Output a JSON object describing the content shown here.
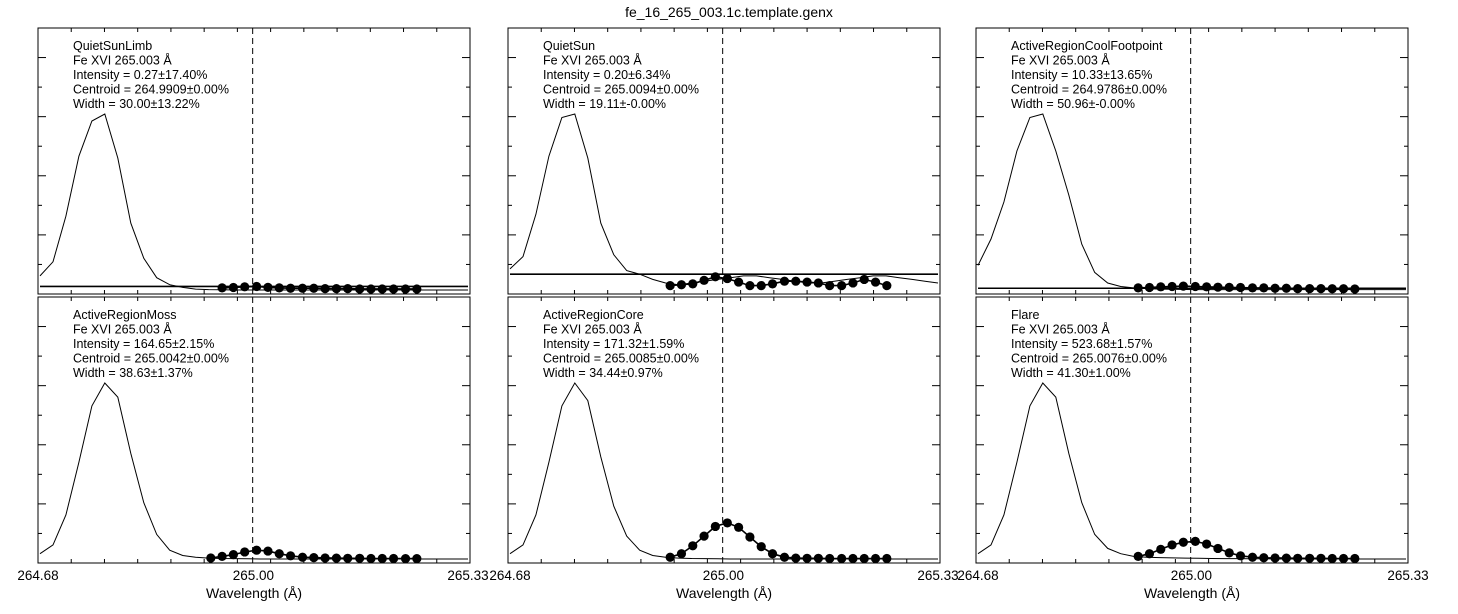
{
  "title": "fe_16_265_003.1c.template.genx",
  "xlabel": "Wavelength (Å)",
  "x_ticks": [
    "264.68",
    "265.00",
    "265.33"
  ],
  "colors": {
    "line": "#000000",
    "background": "#ffffff"
  },
  "chart_data": [
    {
      "type": "line",
      "name": "QuietSunLimb",
      "lines": [
        "QuietSunLimb",
        "Fe XVI 265.003 Å",
        "Intensity = 0.27±17.40%",
        "Centroid = 264.9909±0.00%",
        "Width = 30.00±13.22%"
      ],
      "xlim": [
        264.68,
        265.33
      ],
      "ylim": [
        0,
        1
      ],
      "vline": 265.003,
      "template_y": [
        0.08,
        0.16,
        0.42,
        0.76,
        0.96,
        1.0,
        0.75,
        0.38,
        0.18,
        0.07,
        0.03,
        0.015,
        0.005,
        0.002,
        0.001,
        0,
        0,
        0,
        0,
        0,
        0,
        0,
        0,
        0,
        0,
        0,
        0,
        0,
        0,
        0,
        0,
        0,
        0,
        0
      ],
      "baseline_y": 0.02,
      "points_x": [
        264.957,
        264.974,
        264.991,
        265.009,
        265.026,
        265.043,
        265.06,
        265.078,
        265.095,
        265.112,
        265.129,
        265.146,
        265.164,
        265.181,
        265.198,
        265.215,
        265.233,
        265.25
      ],
      "points_y": [
        0.012,
        0.014,
        0.018,
        0.02,
        0.015,
        0.012,
        0.01,
        0.01,
        0.01,
        0.008,
        0.008,
        0.008,
        0.006,
        0.006,
        0.006,
        0.006,
        0.006,
        0.006
      ]
    },
    {
      "type": "line",
      "name": "QuietSun",
      "lines": [
        "QuietSun",
        "Fe XVI 265.003 Å",
        "Intensity = 0.20±6.34%",
        "Centroid = 265.0094±0.00%",
        "Width = 19.11±-0.00%"
      ],
      "xlim": [
        264.68,
        265.33
      ],
      "ylim": [
        0,
        1
      ],
      "vline": 265.003,
      "template_y": [
        0.12,
        0.19,
        0.43,
        0.76,
        0.98,
        1.0,
        0.75,
        0.38,
        0.2,
        0.11,
        0.09,
        0.06,
        0.04,
        0.03,
        0.04,
        0.05,
        0.06,
        0.07,
        0.08,
        0.08,
        0.07,
        0.06,
        0.05,
        0.04,
        0.04,
        0.05,
        0.06,
        0.07,
        0.08,
        0.08,
        0.07,
        0.06,
        0.05,
        0.04
      ],
      "baseline_y": 0.09,
      "points_x": [
        264.924,
        264.941,
        264.958,
        264.975,
        264.992,
        265.01,
        265.027,
        265.044,
        265.061,
        265.078,
        265.096,
        265.113,
        265.13,
        265.147,
        265.164,
        265.182,
        265.199,
        265.216,
        265.233,
        265.25
      ],
      "points_y": [
        0.025,
        0.03,
        0.035,
        0.055,
        0.075,
        0.065,
        0.045,
        0.025,
        0.025,
        0.035,
        0.05,
        0.05,
        0.045,
        0.04,
        0.025,
        0.025,
        0.04,
        0.06,
        0.045,
        0.025
      ]
    },
    {
      "type": "line",
      "name": "ActiveRegionCoolFootpoint",
      "lines": [
        "ActiveRegionCoolFootpoint",
        "Fe XVI 265.003 Å",
        "Intensity = 10.33±13.65%",
        "Centroid = 264.9786±0.00%",
        "Width = 50.96±-0.00%"
      ],
      "xlim": [
        264.68,
        265.33
      ],
      "ylim": [
        0,
        1
      ],
      "vline": 265.003,
      "template_y": [
        0.14,
        0.29,
        0.5,
        0.79,
        0.98,
        1.0,
        0.79,
        0.54,
        0.26,
        0.1,
        0.04,
        0.02,
        0.012,
        0.008,
        0.005,
        0.004,
        0.003,
        0.002,
        0.002,
        0.002,
        0.002,
        0.002,
        0.002,
        0.002,
        0.002,
        0.002,
        0.002,
        0.002,
        0.002,
        0.002,
        0.002,
        0.002,
        0.002,
        0.002
      ],
      "baseline_y": 0.01,
      "points_x": [
        264.924,
        264.941,
        264.958,
        264.975,
        264.992,
        265.01,
        265.027,
        265.044,
        265.061,
        265.078,
        265.096,
        265.113,
        265.13,
        265.147,
        265.164,
        265.182,
        265.199,
        265.216,
        265.233,
        265.25
      ],
      "points_y": [
        0.012,
        0.014,
        0.018,
        0.02,
        0.022,
        0.02,
        0.018,
        0.016,
        0.015,
        0.014,
        0.012,
        0.012,
        0.01,
        0.01,
        0.008,
        0.008,
        0.008,
        0.007,
        0.007,
        0.006
      ]
    },
    {
      "type": "line",
      "name": "ActiveRegionMoss",
      "lines": [
        "ActiveRegionMoss",
        "Fe XVI 265.003 Å",
        "Intensity = 164.65±2.15%",
        "Centroid = 265.0042±0.00%",
        "Width = 38.63±1.37%"
      ],
      "xlim": [
        264.68,
        265.33
      ],
      "ylim": [
        0,
        1
      ],
      "vline": 265.003,
      "template_y": [
        0.03,
        0.08,
        0.25,
        0.55,
        0.87,
        1.0,
        0.92,
        0.6,
        0.32,
        0.14,
        0.05,
        0.02,
        0.01,
        0.005,
        0.003,
        0.002,
        0.001,
        0,
        0,
        0,
        0,
        0,
        0,
        0,
        0,
        0,
        0,
        0,
        0,
        0,
        0,
        0,
        0,
        0
      ],
      "baseline_y": 0,
      "points_x": [
        264.94,
        264.957,
        264.974,
        264.991,
        265.009,
        265.026,
        265.043,
        265.06,
        265.078,
        265.095,
        265.112,
        265.129,
        265.146,
        265.164,
        265.181,
        265.198,
        265.215,
        265.233,
        265.25
      ],
      "points_y": [
        0.006,
        0.015,
        0.025,
        0.04,
        0.05,
        0.045,
        0.03,
        0.018,
        0.01,
        0.008,
        0.006,
        0.005,
        0.004,
        0.004,
        0.003,
        0.003,
        0.003,
        0.002,
        0.002
      ]
    },
    {
      "type": "line",
      "name": "ActiveRegionCore",
      "lines": [
        "ActiveRegionCore",
        "Fe XVI 265.003 Å",
        "Intensity = 171.32±1.59%",
        "Centroid = 265.0085±0.00%",
        "Width = 34.44±0.97%"
      ],
      "xlim": [
        264.68,
        265.33
      ],
      "ylim": [
        0,
        1
      ],
      "vline": 265.003,
      "template_y": [
        0.03,
        0.08,
        0.25,
        0.55,
        0.87,
        1.0,
        0.9,
        0.58,
        0.3,
        0.13,
        0.05,
        0.02,
        0.01,
        0.005,
        0.003,
        0.002,
        0.001,
        0,
        0,
        0,
        0,
        0,
        0,
        0,
        0,
        0,
        0,
        0,
        0,
        0,
        0,
        0,
        0,
        0
      ],
      "baseline_y": 0,
      "points_x": [
        264.924,
        264.941,
        264.958,
        264.975,
        264.992,
        265.01,
        265.027,
        265.044,
        265.061,
        265.078,
        265.096,
        265.113,
        265.13,
        265.147,
        265.164,
        265.182,
        265.199,
        265.216,
        265.233,
        265.25
      ],
      "points_y": [
        0.01,
        0.03,
        0.075,
        0.13,
        0.185,
        0.205,
        0.18,
        0.125,
        0.07,
        0.03,
        0.01,
        0.005,
        0.004,
        0.004,
        0.003,
        0.003,
        0.003,
        0.003,
        0.003,
        0.003
      ]
    },
    {
      "type": "line",
      "name": "Flare",
      "lines": [
        "Flare",
        "Fe XVI 265.003 Å",
        "Intensity = 523.68±1.57%",
        "Centroid = 265.0076±0.00%",
        "Width = 41.30±1.00%"
      ],
      "xlim": [
        264.68,
        265.33
      ],
      "ylim": [
        0,
        1
      ],
      "vline": 265.003,
      "template_y": [
        0.03,
        0.08,
        0.25,
        0.55,
        0.87,
        1.0,
        0.92,
        0.6,
        0.32,
        0.14,
        0.06,
        0.03,
        0.015,
        0.01,
        0.008,
        0.006,
        0.005,
        0.004,
        0.003,
        0.002,
        0.002,
        0.001,
        0.001,
        0,
        0,
        0,
        0,
        0,
        0,
        0,
        0,
        0,
        0,
        0
      ],
      "baseline_y": 0,
      "points_x": [
        264.924,
        264.941,
        264.958,
        264.975,
        264.992,
        265.01,
        265.027,
        265.044,
        265.061,
        265.078,
        265.096,
        265.113,
        265.13,
        265.147,
        265.164,
        265.182,
        265.199,
        265.216,
        265.233,
        265.25
      ],
      "points_y": [
        0.015,
        0.03,
        0.055,
        0.08,
        0.095,
        0.1,
        0.085,
        0.06,
        0.035,
        0.018,
        0.01,
        0.007,
        0.006,
        0.005,
        0.004,
        0.004,
        0.004,
        0.003,
        0.003,
        0.003
      ]
    }
  ]
}
